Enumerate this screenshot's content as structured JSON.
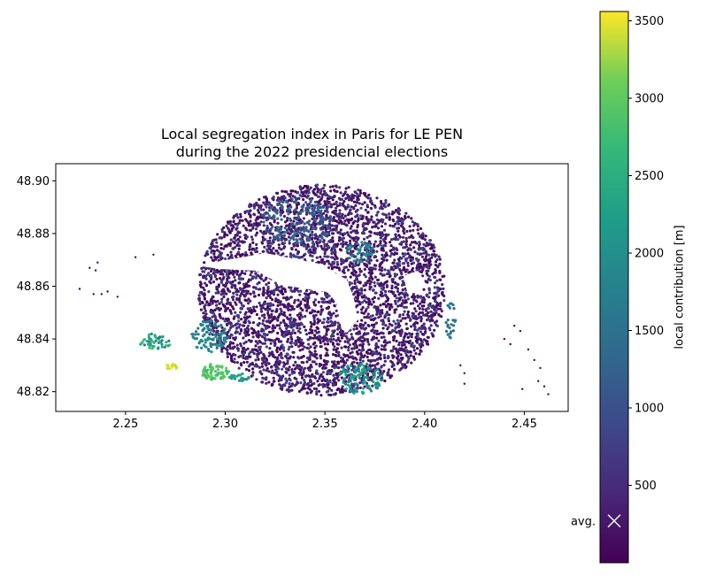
{
  "chart_data": {
    "type": "scatter",
    "title_lines": [
      "Local segregation index in Paris for LE PEN",
      "during the 2022 presidencial elections"
    ],
    "xlabel": "",
    "ylabel": "",
    "xlim": [
      2.215,
      2.472
    ],
    "ylim": [
      48.8125,
      48.9065
    ],
    "x_ticks": [
      2.25,
      2.3,
      2.35,
      2.4,
      2.45
    ],
    "x_tick_labels": [
      "2.25",
      "2.30",
      "2.35",
      "2.40",
      "2.45"
    ],
    "y_ticks": [
      48.82,
      48.84,
      48.86,
      48.88,
      48.9
    ],
    "y_tick_labels": [
      "48.82",
      "48.84",
      "48.86",
      "48.88",
      "48.90"
    ],
    "colorbar": {
      "label": "local contribution [m]",
      "range": [
        0,
        3560
      ],
      "ticks": [
        500,
        1000,
        1500,
        2000,
        2500,
        3000,
        3500
      ],
      "tick_labels": [
        "500",
        "1000",
        "1500",
        "2000",
        "2500",
        "3000",
        "3500"
      ],
      "colormap": "viridis",
      "average_marker": {
        "label": "avg.",
        "value": 270
      }
    },
    "point_groups": [
      {
        "cx": 2.3485,
        "cy": 48.8585,
        "rx": 0.062,
        "ry": 0.04,
        "count": 3800,
        "vmin": 30,
        "vmax": 500
      },
      {
        "cx": 2.3485,
        "cy": 48.8585,
        "rx": 0.062,
        "ry": 0.04,
        "count": 700,
        "vmin": 500,
        "vmax": 1000
      },
      {
        "cx": 2.336,
        "cy": 48.8845,
        "rx": 0.018,
        "ry": 0.009,
        "count": 160,
        "vmin": 900,
        "vmax": 1500
      },
      {
        "cx": 2.368,
        "cy": 48.873,
        "rx": 0.007,
        "ry": 0.004,
        "count": 45,
        "vmin": 1500,
        "vmax": 2000
      },
      {
        "cx": 2.292,
        "cy": 48.841,
        "rx": 0.009,
        "ry": 0.006,
        "count": 90,
        "vmin": 1400,
        "vmax": 2100
      },
      {
        "cx": 2.265,
        "cy": 48.839,
        "rx": 0.008,
        "ry": 0.003,
        "count": 50,
        "vmin": 1500,
        "vmax": 2800
      },
      {
        "cx": 2.295,
        "cy": 48.8275,
        "rx": 0.007,
        "ry": 0.003,
        "count": 70,
        "vmin": 2700,
        "vmax": 3100
      },
      {
        "cx": 2.307,
        "cy": 48.8255,
        "rx": 0.005,
        "ry": 0.0015,
        "count": 25,
        "vmin": 2000,
        "vmax": 2400
      },
      {
        "cx": 2.368,
        "cy": 48.825,
        "rx": 0.011,
        "ry": 0.006,
        "count": 110,
        "vmin": 1600,
        "vmax": 2500
      },
      {
        "cx": 2.413,
        "cy": 48.847,
        "rx": 0.003,
        "ry": 0.007,
        "count": 25,
        "vmin": 1200,
        "vmax": 1900
      },
      {
        "cx": 2.273,
        "cy": 48.8295,
        "rx": 0.003,
        "ry": 0.001,
        "count": 16,
        "vmin": 3300,
        "vmax": 3560
      }
    ],
    "isolated_points": [
      [
        2.227,
        48.859,
        50
      ],
      [
        2.235,
        48.866,
        60
      ],
      [
        2.236,
        48.869,
        50
      ],
      [
        2.234,
        48.857,
        40
      ],
      [
        2.238,
        48.857,
        50
      ],
      [
        2.232,
        48.867,
        40
      ],
      [
        2.241,
        48.858,
        30
      ],
      [
        2.255,
        48.871,
        60
      ],
      [
        2.246,
        48.856,
        40
      ],
      [
        2.264,
        48.872,
        80
      ],
      [
        2.44,
        48.84,
        60
      ],
      [
        2.445,
        48.845,
        50
      ],
      [
        2.448,
        48.843,
        40
      ],
      [
        2.452,
        48.836,
        60
      ],
      [
        2.455,
        48.832,
        50
      ],
      [
        2.458,
        48.829,
        40
      ],
      [
        2.46,
        48.822,
        50
      ],
      [
        2.462,
        48.819,
        60
      ],
      [
        2.457,
        48.824,
        40
      ],
      [
        2.449,
        48.821,
        50
      ],
      [
        2.443,
        48.838,
        40
      ],
      [
        2.418,
        48.83,
        50
      ],
      [
        2.42,
        48.827,
        40
      ],
      [
        2.42,
        48.823,
        60
      ]
    ]
  }
}
